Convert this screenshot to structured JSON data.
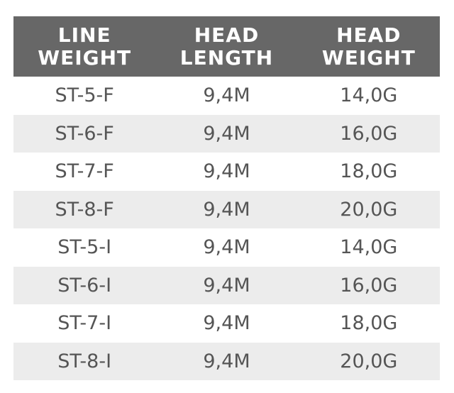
{
  "table": {
    "headers": [
      [
        "LINE",
        "WEIGHT"
      ],
      [
        "HEAD",
        "LENGTH"
      ],
      [
        "HEAD",
        "WEIGHT"
      ]
    ],
    "rows": [
      [
        "ST-5-F",
        "9,4M",
        "14,0G"
      ],
      [
        "ST-6-F",
        "9,4M",
        "16,0G"
      ],
      [
        "ST-7-F",
        "9,4M",
        "18,0G"
      ],
      [
        "ST-8-F",
        "9,4M",
        "20,0G"
      ],
      [
        "ST-5-I",
        "9,4M",
        "14,0G"
      ],
      [
        "ST-6-I",
        "9,4M",
        "16,0G"
      ],
      [
        "ST-7-I",
        "9,4M",
        "18,0G"
      ],
      [
        "ST-8-I",
        "9,4M",
        "20,0G"
      ]
    ]
  },
  "colors": {
    "header_bg": "#676767",
    "header_text": "#ffffff",
    "alt_row_bg": "#ececec",
    "body_text": "#555555"
  }
}
